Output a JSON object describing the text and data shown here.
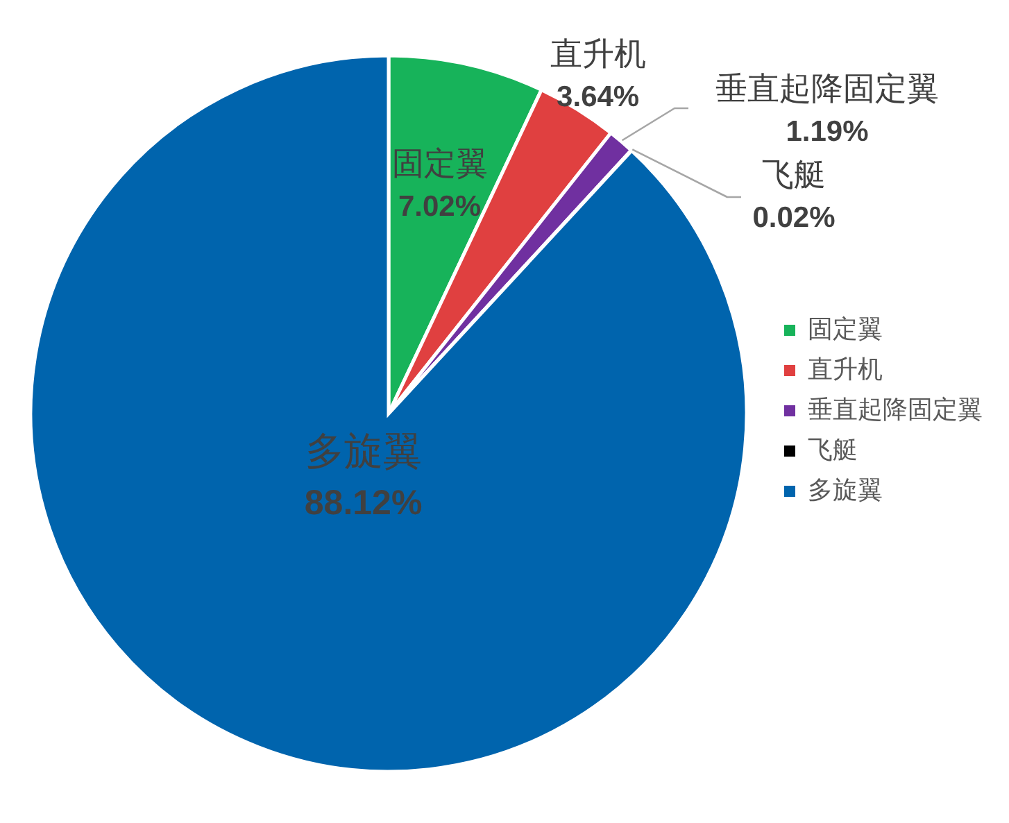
{
  "chart_data": {
    "type": "pie",
    "categories": [
      "固定翼",
      "直升机",
      "垂直起降固定翼",
      "飞艇",
      "多旋翼"
    ],
    "values": [
      7.02,
      3.64,
      1.19,
      0.02,
      88.12
    ],
    "colors": [
      "#17b35a",
      "#e04040",
      "#7030a0",
      "#000000",
      "#0064ad"
    ],
    "value_labels": [
      "7.02%",
      "3.64%",
      "1.19%",
      "0.02%",
      "88.12%"
    ],
    "legend": "right"
  }
}
